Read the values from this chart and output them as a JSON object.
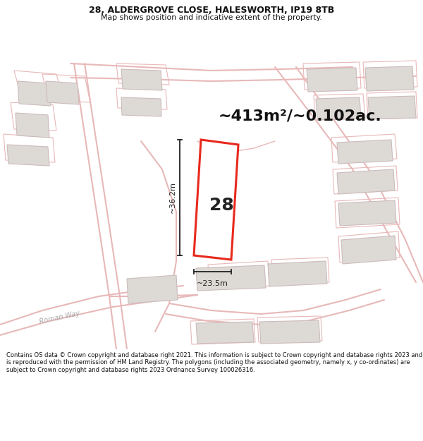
{
  "title_line1": "28, ALDERGROVE CLOSE, HALESWORTH, IP19 8TB",
  "title_line2": "Map shows position and indicative extent of the property.",
  "area_text": "~413m²/~0.102ac.",
  "width_label": "~23.5m",
  "height_label": "~36.2m",
  "number_label": "28",
  "footer_text": "Contains OS data © Crown copyright and database right 2021. This information is subject to Crown copyright and database rights 2023 and is reproduced with the permission of HM Land Registry. The polygons (including the associated geometry, namely x, y co-ordinates) are subject to Crown copyright and database rights 2023 Ordnance Survey 100026316.",
  "bg_color": "#f5f3f0",
  "map_bg": "#f5f3f0",
  "plot_fill": "#ffffff",
  "plot_border": "#e8291c",
  "road_color": "#e8b8b8",
  "building_color": "#dddad6",
  "building_border": "#ccbbbb",
  "footer_bg": "#ffffff",
  "header_bg": "#ffffff",
  "dim_color": "#222222",
  "label_color": "#222222"
}
